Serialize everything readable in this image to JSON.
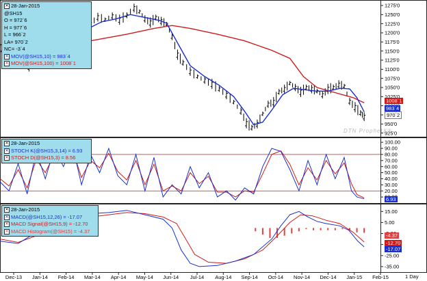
{
  "chart_data": [
    {
      "type": "bar",
      "subtype": "ohlc",
      "title": "28-Jan-2015",
      "symbol": "@SH15",
      "open_label": "O = 972`6",
      "high_label": "H = 977`6",
      "low_label": "L = 966`2",
      "last_label": "LA= 970`2",
      "change_label": "NC= -3`4",
      "ylim": [
        915,
        1290
      ],
      "y_ticks": [
        "1275'0",
        "1250'0",
        "1225'0",
        "1200'0",
        "1175'0",
        "1150'0",
        "1125'0",
        "1100'0",
        "1075'0",
        "1050'0",
        "1025'0",
        "1000'0",
        "975'0",
        "950'0",
        "925'0"
      ],
      "y_tick_values": [
        1275,
        1250,
        1225,
        1200,
        1175,
        1150,
        1125,
        1100,
        1075,
        1050,
        1025,
        1000,
        975,
        950,
        925
      ],
      "x_ticks": [
        "Dec-13",
        "Jan-14",
        "Feb-14",
        "Mar-14",
        "Apr-14",
        "May-14",
        "Jun-14",
        "Jul-14",
        "Aug-14",
        "Sep-14",
        "Oct-14",
        "Nov-14",
        "Dec-14",
        "Jan-15",
        "Feb-15"
      ],
      "right_label": "1 Day",
      "watermark": "DTN ProphetX®",
      "series": [
        {
          "name": "MOV(@SH15,10) = 983`4",
          "color": "#1a2fd0",
          "tag": "983`4",
          "tag_value": 983.5
        },
        {
          "name": "MOV(@SH15,100) = 1008`1",
          "color": "#d01a1a",
          "tag": "1008`1",
          "tag_value": 1008.1
        },
        {
          "name": "Last",
          "color": "#ffffff",
          "tag": "970`2",
          "tag_value": 970.2
        }
      ],
      "price_points": [
        [
          0,
          1165
        ],
        [
          8,
          1150
        ],
        [
          16,
          1125
        ],
        [
          24,
          1112
        ],
        [
          32,
          1106
        ],
        [
          40,
          1126
        ],
        [
          48,
          1148
        ],
        [
          56,
          1160
        ],
        [
          62,
          1152
        ],
        [
          68,
          1170
        ],
        [
          76,
          1186
        ],
        [
          84,
          1200
        ],
        [
          92,
          1218
        ],
        [
          100,
          1225
        ],
        [
          108,
          1243
        ],
        [
          116,
          1236
        ],
        [
          124,
          1246
        ],
        [
          132,
          1236
        ],
        [
          140,
          1248
        ],
        [
          148,
          1268
        ],
        [
          154,
          1258
        ],
        [
          160,
          1238
        ],
        [
          166,
          1228
        ],
        [
          172,
          1242
        ],
        [
          178,
          1232
        ],
        [
          184,
          1224
        ],
        [
          190,
          1190
        ],
        [
          196,
          1140
        ],
        [
          202,
          1118
        ],
        [
          210,
          1094
        ],
        [
          218,
          1080
        ],
        [
          226,
          1070
        ],
        [
          234,
          1060
        ],
        [
          242,
          1046
        ],
        [
          250,
          1030
        ],
        [
          258,
          1010
        ],
        [
          266,
          985
        ],
        [
          272,
          952
        ],
        [
          278,
          940
        ],
        [
          284,
          950
        ],
        [
          290,
          978
        ],
        [
          296,
          1004
        ],
        [
          302,
          1010
        ],
        [
          308,
          1038
        ],
        [
          314,
          1046
        ],
        [
          320,
          1062
        ],
        [
          326,
          1050
        ],
        [
          332,
          1038
        ],
        [
          338,
          1050
        ],
        [
          344,
          1046
        ],
        [
          350,
          1040
        ],
        [
          356,
          1030
        ],
        [
          362,
          1046
        ],
        [
          368,
          1050
        ],
        [
          374,
          1058
        ],
        [
          380,
          1054
        ],
        [
          386,
          1012
        ],
        [
          392,
          996
        ],
        [
          398,
          980
        ],
        [
          402,
          970
        ]
      ],
      "ma10_points": [
        [
          0,
          1150
        ],
        [
          16,
          1130
        ],
        [
          32,
          1112
        ],
        [
          48,
          1140
        ],
        [
          64,
          1158
        ],
        [
          80,
          1182
        ],
        [
          96,
          1210
        ],
        [
          112,
          1230
        ],
        [
          128,
          1238
        ],
        [
          144,
          1250
        ],
        [
          160,
          1242
        ],
        [
          176,
          1234
        ],
        [
          184,
          1226
        ],
        [
          196,
          1172
        ],
        [
          210,
          1110
        ],
        [
          226,
          1080
        ],
        [
          242,
          1056
        ],
        [
          258,
          1025
        ],
        [
          270,
          985
        ],
        [
          280,
          948
        ],
        [
          290,
          955
        ],
        [
          300,
          988
        ],
        [
          312,
          1030
        ],
        [
          324,
          1048
        ],
        [
          336,
          1044
        ],
        [
          350,
          1040
        ],
        [
          362,
          1040
        ],
        [
          376,
          1048
        ],
        [
          386,
          1046
        ],
        [
          394,
          1022
        ],
        [
          402,
          983
        ]
      ],
      "ma100_points": [
        [
          0,
          1150
        ],
        [
          30,
          1155
        ],
        [
          60,
          1162
        ],
        [
          100,
          1178
        ],
        [
          140,
          1196
        ],
        [
          170,
          1212
        ],
        [
          190,
          1220
        ],
        [
          210,
          1212
        ],
        [
          240,
          1196
        ],
        [
          270,
          1178
        ],
        [
          300,
          1152
        ],
        [
          320,
          1130
        ],
        [
          335,
          1080
        ],
        [
          350,
          1050
        ],
        [
          370,
          1036
        ],
        [
          390,
          1022
        ],
        [
          402,
          1008
        ]
      ]
    },
    {
      "type": "line",
      "title": "28-Jan-2015",
      "ylim": [
        0,
        108
      ],
      "y_ticks": [
        "100.00",
        "90.00",
        "80.00",
        "70.00",
        "60.00",
        "50.00",
        "40.00",
        "30.00",
        "20.00",
        "10.00"
      ],
      "y_tick_values": [
        100,
        90,
        80,
        70,
        60,
        50,
        40,
        30,
        20,
        10
      ],
      "reference_lines": [
        80,
        20
      ],
      "series": [
        {
          "name": "STOCH K(@SH15,3,14) = 6.93",
          "color": "#1a2fd0",
          "tag": "6.93",
          "tag_value": 6.93
        },
        {
          "name": "STOCH D(@SH15,3) = 8.56",
          "color": "#d01a1a",
          "tag": "",
          "tag_value": 8.56
        }
      ],
      "k_points": [
        [
          0,
          35
        ],
        [
          10,
          20
        ],
        [
          20,
          65
        ],
        [
          30,
          15
        ],
        [
          40,
          85
        ],
        [
          50,
          40
        ],
        [
          60,
          90
        ],
        [
          70,
          60
        ],
        [
          80,
          95
        ],
        [
          90,
          30
        ],
        [
          100,
          80
        ],
        [
          110,
          50
        ],
        [
          120,
          90
        ],
        [
          130,
          45
        ],
        [
          140,
          30
        ],
        [
          150,
          80
        ],
        [
          160,
          20
        ],
        [
          170,
          75
        ],
        [
          180,
          10
        ],
        [
          190,
          30
        ],
        [
          200,
          15
        ],
        [
          210,
          60
        ],
        [
          220,
          25
        ],
        [
          230,
          50
        ],
        [
          240,
          10
        ],
        [
          250,
          20
        ],
        [
          260,
          5
        ],
        [
          270,
          25
        ],
        [
          280,
          15
        ],
        [
          290,
          60
        ],
        [
          300,
          90
        ],
        [
          310,
          85
        ],
        [
          320,
          55
        ],
        [
          330,
          20
        ],
        [
          340,
          70
        ],
        [
          350,
          30
        ],
        [
          360,
          80
        ],
        [
          370,
          40
        ],
        [
          380,
          75
        ],
        [
          388,
          20
        ],
        [
          394,
          10
        ],
        [
          402,
          7
        ]
      ],
      "d_points": [
        [
          0,
          40
        ],
        [
          10,
          28
        ],
        [
          20,
          55
        ],
        [
          30,
          25
        ],
        [
          40,
          72
        ],
        [
          50,
          50
        ],
        [
          60,
          80
        ],
        [
          70,
          68
        ],
        [
          80,
          88
        ],
        [
          90,
          42
        ],
        [
          100,
          70
        ],
        [
          110,
          58
        ],
        [
          120,
          82
        ],
        [
          130,
          52
        ],
        [
          140,
          38
        ],
        [
          150,
          70
        ],
        [
          160,
          30
        ],
        [
          170,
          64
        ],
        [
          180,
          20
        ],
        [
          190,
          28
        ],
        [
          200,
          20
        ],
        [
          210,
          50
        ],
        [
          220,
          32
        ],
        [
          230,
          44
        ],
        [
          240,
          18
        ],
        [
          250,
          18
        ],
        [
          260,
          10
        ],
        [
          270,
          20
        ],
        [
          280,
          18
        ],
        [
          290,
          48
        ],
        [
          300,
          80
        ],
        [
          310,
          86
        ],
        [
          320,
          64
        ],
        [
          330,
          30
        ],
        [
          340,
          58
        ],
        [
          350,
          38
        ],
        [
          360,
          70
        ],
        [
          370,
          48
        ],
        [
          380,
          66
        ],
        [
          388,
          32
        ],
        [
          394,
          14
        ],
        [
          402,
          8.56
        ]
      ]
    },
    {
      "type": "line",
      "title": "28-Jan-2015",
      "ylim": [
        -40,
        22
      ],
      "y_ticks": [
        "15.00",
        "5.00",
        "-5.00",
        "-15.00",
        "-25.00",
        "-35.00"
      ],
      "y_tick_values": [
        15,
        5,
        -5,
        -15,
        -25,
        -35
      ],
      "series": [
        {
          "name": "MACD(@SH15,12,26) = -17.07",
          "color": "#1a2fd0",
          "tag": "-17.07",
          "tag_value": -17.07
        },
        {
          "name": "MACD Signal(@SH15,9) = -12.70",
          "color": "#d01a1a",
          "tag": "-12.70",
          "tag_value": -12.7
        },
        {
          "name": "MACD Histogram(@SH15) = -4.37",
          "color": "#e04040",
          "tag": "-4.37",
          "tag_value": -4.37
        }
      ],
      "macd_points": [
        [
          0,
          -12
        ],
        [
          20,
          -14
        ],
        [
          40,
          -4
        ],
        [
          60,
          4
        ],
        [
          80,
          9
        ],
        [
          100,
          13
        ],
        [
          120,
          14
        ],
        [
          140,
          16
        ],
        [
          160,
          12
        ],
        [
          180,
          8
        ],
        [
          190,
          0
        ],
        [
          200,
          -20
        ],
        [
          210,
          -32
        ],
        [
          220,
          -35
        ],
        [
          240,
          -34
        ],
        [
          260,
          -30
        ],
        [
          280,
          -24
        ],
        [
          300,
          -10
        ],
        [
          310,
          2
        ],
        [
          320,
          12
        ],
        [
          330,
          15
        ],
        [
          340,
          10
        ],
        [
          350,
          6
        ],
        [
          360,
          4
        ],
        [
          375,
          2
        ],
        [
          385,
          -2
        ],
        [
          395,
          -12
        ],
        [
          402,
          -17.07
        ]
      ],
      "signal_points": [
        [
          0,
          -10
        ],
        [
          20,
          -13
        ],
        [
          40,
          -7
        ],
        [
          60,
          1
        ],
        [
          80,
          6
        ],
        [
          100,
          10
        ],
        [
          120,
          12
        ],
        [
          140,
          14
        ],
        [
          160,
          13
        ],
        [
          180,
          10
        ],
        [
          195,
          4
        ],
        [
          205,
          -10
        ],
        [
          215,
          -24
        ],
        [
          230,
          -31
        ],
        [
          250,
          -32
        ],
        [
          270,
          -28
        ],
        [
          290,
          -20
        ],
        [
          305,
          -8
        ],
        [
          320,
          5
        ],
        [
          332,
          12
        ],
        [
          345,
          11
        ],
        [
          360,
          7
        ],
        [
          375,
          4
        ],
        [
          390,
          -4
        ],
        [
          402,
          -12.7
        ]
      ],
      "histogram_points": [
        [
          282,
          -3
        ],
        [
          290,
          -6
        ],
        [
          298,
          -9
        ],
        [
          306,
          -9
        ],
        [
          314,
          -7
        ],
        [
          322,
          -5
        ],
        [
          330,
          -3
        ],
        [
          338,
          -1
        ],
        [
          346,
          -2
        ],
        [
          354,
          -2
        ],
        [
          362,
          -2
        ],
        [
          370,
          -2
        ],
        [
          378,
          -1
        ],
        [
          386,
          -2
        ],
        [
          394,
          -4
        ],
        [
          402,
          -4.37
        ]
      ]
    }
  ]
}
